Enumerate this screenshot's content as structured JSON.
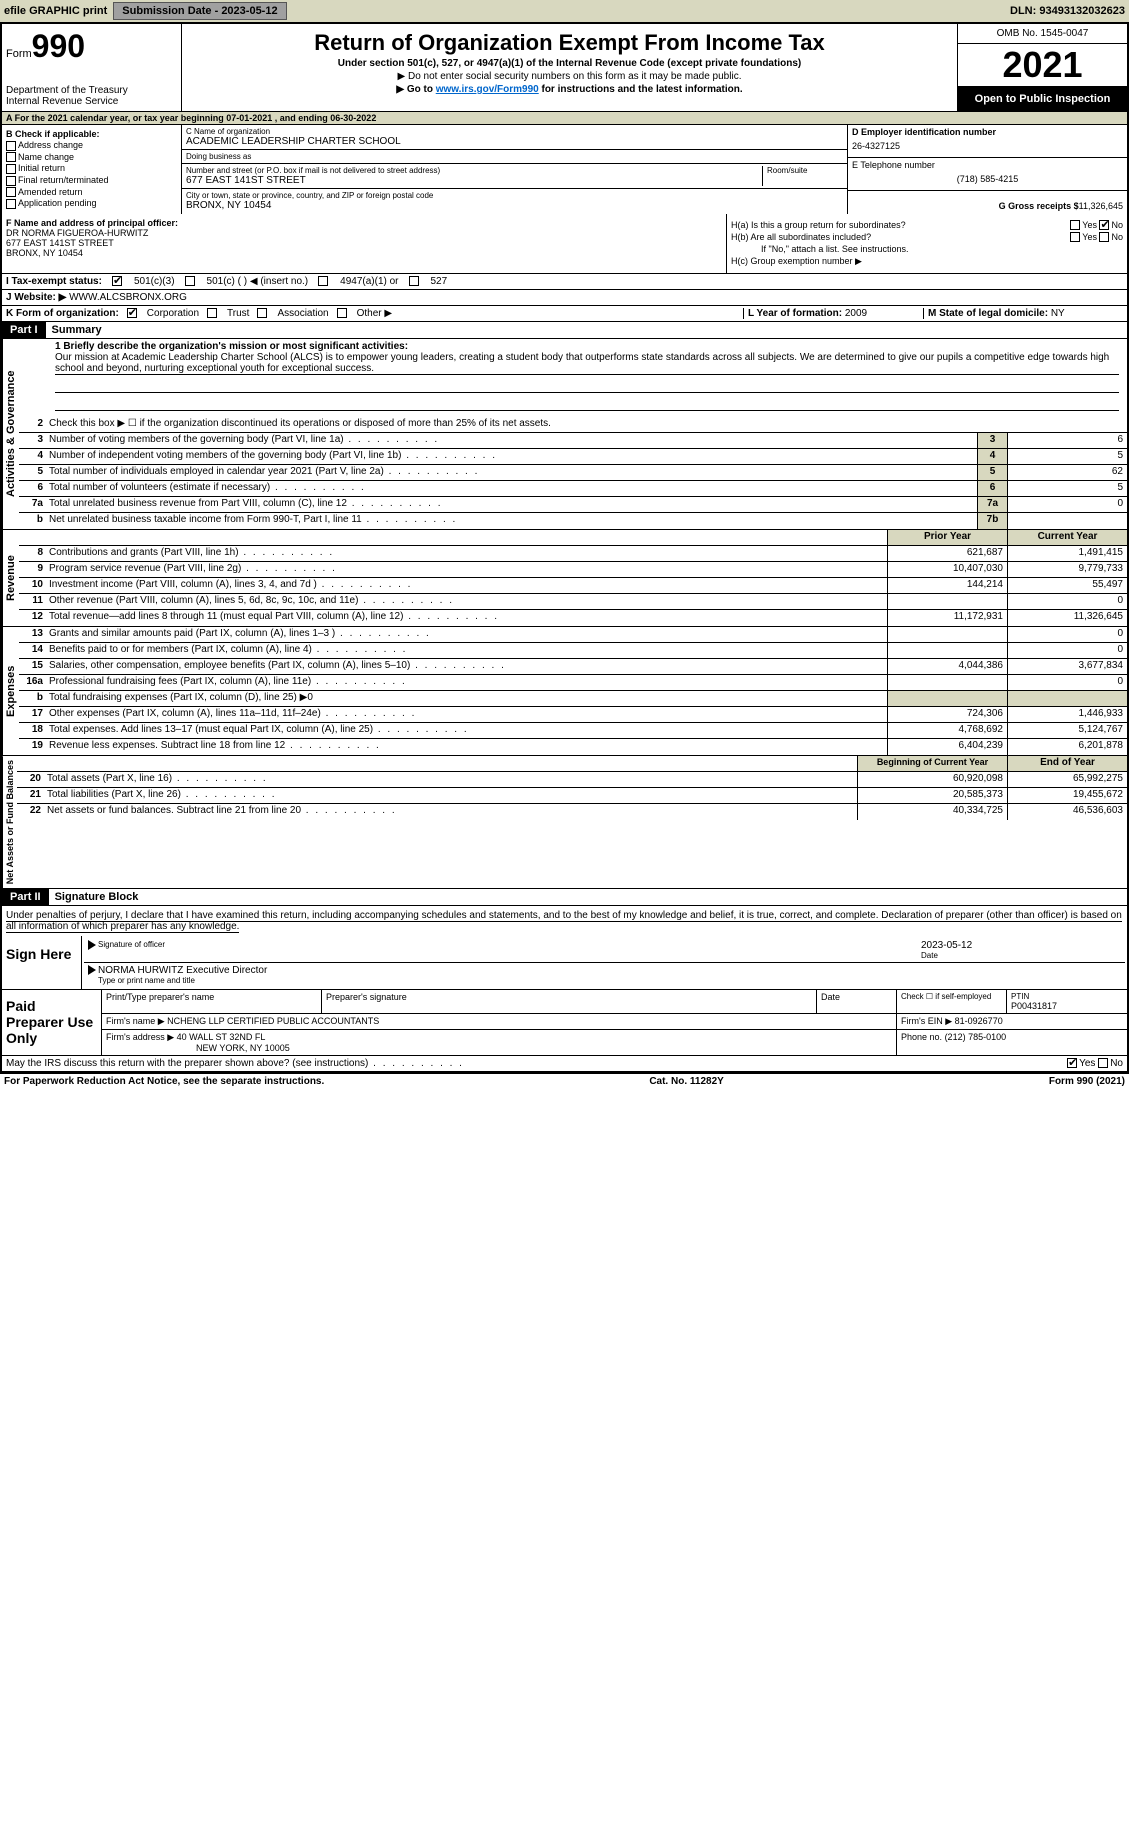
{
  "topbar": {
    "efile": "efile GRAPHIC print",
    "submission_btn": "Submission Date - 2023-05-12",
    "dln": "DLN: 93493132032623"
  },
  "header": {
    "form_prefix": "Form",
    "form_number": "990",
    "dept": "Department of the Treasury",
    "irs": "Internal Revenue Service",
    "title": "Return of Organization Exempt From Income Tax",
    "subtitle": "Under section 501(c), 527, or 4947(a)(1) of the Internal Revenue Code (except private foundations)",
    "note1": "▶ Do not enter social security numbers on this form as it may be made public.",
    "note2_pre": "▶ Go to ",
    "note2_link": "www.irs.gov/Form990",
    "note2_post": " for instructions and the latest information.",
    "omb": "OMB No. 1545-0047",
    "year": "2021",
    "open": "Open to Public Inspection"
  },
  "line_a": "A For the 2021 calendar year, or tax year beginning 07-01-2021    , and ending 06-30-2022",
  "col_b": {
    "title": "B Check if applicable:",
    "items": [
      "Address change",
      "Name change",
      "Initial return",
      "Final return/terminated",
      "Amended return",
      "Application pending"
    ]
  },
  "col_c": {
    "name_label": "C Name of organization",
    "name": "ACADEMIC LEADERSHIP CHARTER SCHOOL",
    "dba_label": "Doing business as",
    "dba": "",
    "street_label": "Number and street (or P.O. box if mail is not delivered to street address)",
    "room_label": "Room/suite",
    "street": "677 EAST 141ST STREET",
    "city_label": "City or town, state or province, country, and ZIP or foreign postal code",
    "city": "BRONX, NY  10454"
  },
  "col_d": {
    "ein_label": "D Employer identification number",
    "ein": "26-4327125",
    "tel_label": "E Telephone number",
    "tel": "(718) 585-4215",
    "gross_label": "G Gross receipts $",
    "gross": "11,326,645"
  },
  "section_f": {
    "label": "F Name and address of principal officer:",
    "name": "DR NORMA FIGUEROA-HURWITZ",
    "street": "677 EAST 141ST STREET",
    "city": "BRONX, NY  10454"
  },
  "section_h": {
    "ha": "H(a)  Is this a group return for subordinates?",
    "ha_yes": "Yes",
    "ha_no": "No",
    "hb": "H(b)  Are all subordinates included?",
    "hb_note": "If \"No,\" attach a list. See instructions.",
    "hc": "H(c)  Group exemption number ▶"
  },
  "tax_status": {
    "label": "I    Tax-exempt status:",
    "opts": [
      "501(c)(3)",
      "501(c) (   ) ◀ (insert no.)",
      "4947(a)(1) or",
      "527"
    ]
  },
  "website": {
    "label": "J    Website: ▶",
    "val": "WWW.ALCSBRONX.ORG"
  },
  "line_k": {
    "label": "K Form of organization:",
    "opts": [
      "Corporation",
      "Trust",
      "Association",
      "Other ▶"
    ]
  },
  "line_l": {
    "label": "L Year of formation:",
    "val": "2009"
  },
  "line_m": {
    "label": "M State of legal domicile:",
    "val": "NY"
  },
  "part1": {
    "header": "Part I",
    "title": "Summary"
  },
  "mission": {
    "label": "1  Briefly describe the organization's mission or most significant activities:",
    "text": "Our mission at Academic Leadership Charter School (ALCS) is to empower young leaders, creating a student body that outperforms state standards across all subjects. We are determined to give our pupils a competitive edge towards high school and beyond, nurturing exceptional youth for exceptional success."
  },
  "gov_label": "Activities & Governance",
  "rev_label": "Revenue",
  "exp_label": "Expenses",
  "net_label": "Net Assets or Fund Balances",
  "gov_rows": [
    {
      "n": "2",
      "d": "Check this box ▶ ☐ if the organization discontinued its operations or disposed of more than 25% of its net assets."
    },
    {
      "n": "3",
      "d": "Number of voting members of the governing body (Part VI, line 1a)",
      "box": "3",
      "v": "6"
    },
    {
      "n": "4",
      "d": "Number of independent voting members of the governing body (Part VI, line 1b)",
      "box": "4",
      "v": "5"
    },
    {
      "n": "5",
      "d": "Total number of individuals employed in calendar year 2021 (Part V, line 2a)",
      "box": "5",
      "v": "62"
    },
    {
      "n": "6",
      "d": "Total number of volunteers (estimate if necessary)",
      "box": "6",
      "v": "5"
    },
    {
      "n": "7a",
      "d": "Total unrelated business revenue from Part VIII, column (C), line 12",
      "box": "7a",
      "v": "0"
    },
    {
      "n": "b",
      "d": "Net unrelated business taxable income from Form 990-T, Part I, line 11",
      "box": "7b",
      "v": ""
    }
  ],
  "rev_head": {
    "prior": "Prior Year",
    "current": "Current Year"
  },
  "rev_rows": [
    {
      "n": "8",
      "d": "Contributions and grants (Part VIII, line 1h)",
      "p": "621,687",
      "c": "1,491,415"
    },
    {
      "n": "9",
      "d": "Program service revenue (Part VIII, line 2g)",
      "p": "10,407,030",
      "c": "9,779,733"
    },
    {
      "n": "10",
      "d": "Investment income (Part VIII, column (A), lines 3, 4, and 7d )",
      "p": "144,214",
      "c": "55,497"
    },
    {
      "n": "11",
      "d": "Other revenue (Part VIII, column (A), lines 5, 6d, 8c, 9c, 10c, and 11e)",
      "p": "",
      "c": "0"
    },
    {
      "n": "12",
      "d": "Total revenue—add lines 8 through 11 (must equal Part VIII, column (A), line 12)",
      "p": "11,172,931",
      "c": "11,326,645"
    }
  ],
  "exp_rows": [
    {
      "n": "13",
      "d": "Grants and similar amounts paid (Part IX, column (A), lines 1–3 )",
      "p": "",
      "c": "0"
    },
    {
      "n": "14",
      "d": "Benefits paid to or for members (Part IX, column (A), line 4)",
      "p": "",
      "c": "0"
    },
    {
      "n": "15",
      "d": "Salaries, other compensation, employee benefits (Part IX, column (A), lines 5–10)",
      "p": "4,044,386",
      "c": "3,677,834"
    },
    {
      "n": "16a",
      "d": "Professional fundraising fees (Part IX, column (A), line 11e)",
      "p": "",
      "c": "0"
    },
    {
      "n": "b",
      "d": "Total fundraising expenses (Part IX, column (D), line 25) ▶0",
      "p": "",
      "c": ""
    },
    {
      "n": "17",
      "d": "Other expenses (Part IX, column (A), lines 11a–11d, 11f–24e)",
      "p": "724,306",
      "c": "1,446,933"
    },
    {
      "n": "18",
      "d": "Total expenses. Add lines 13–17 (must equal Part IX, column (A), line 25)",
      "p": "4,768,692",
      "c": "5,124,767"
    },
    {
      "n": "19",
      "d": "Revenue less expenses. Subtract line 18 from line 12",
      "p": "6,404,239",
      "c": "6,201,878"
    }
  ],
  "net_head": {
    "prior": "Beginning of Current Year",
    "current": "End of Year"
  },
  "net_rows": [
    {
      "n": "20",
      "d": "Total assets (Part X, line 16)",
      "p": "60,920,098",
      "c": "65,992,275"
    },
    {
      "n": "21",
      "d": "Total liabilities (Part X, line 26)",
      "p": "20,585,373",
      "c": "19,455,672"
    },
    {
      "n": "22",
      "d": "Net assets or fund balances. Subtract line 21 from line 20",
      "p": "40,334,725",
      "c": "46,536,603"
    }
  ],
  "part2": {
    "header": "Part II",
    "title": "Signature Block"
  },
  "penalties": "Under penalties of perjury, I declare that I have examined this return, including accompanying schedules and statements, and to the best of my knowledge and belief, it is true, correct, and complete. Declaration of preparer (other than officer) is based on all information of which preparer has any knowledge.",
  "sign": {
    "label": "Sign Here",
    "date": "2023-05-12",
    "sig_label": "Signature of officer",
    "date_label": "Date",
    "name": "NORMA HURWITZ  Executive Director",
    "name_label": "Type or print name and title"
  },
  "preparer": {
    "label": "Paid Preparer Use Only",
    "h_name": "Print/Type preparer's name",
    "h_sig": "Preparer's signature",
    "h_date": "Date",
    "h_check": "Check ☐ if self-employed",
    "h_ptin": "PTIN",
    "ptin": "P00431817",
    "firm_label": "Firm's name    ▶",
    "firm": "NCHENG LLP CERTIFIED PUBLIC ACCOUNTANTS",
    "ein_label": "Firm's EIN ▶",
    "ein": "81-0926770",
    "addr_label": "Firm's address ▶",
    "addr1": "40 WALL ST 32ND FL",
    "addr2": "NEW YORK, NY  10005",
    "phone_label": "Phone no.",
    "phone": "(212) 785-0100"
  },
  "discuss": {
    "text": "May the IRS discuss this return with the preparer shown above? (see instructions)",
    "yes": "Yes",
    "no": "No"
  },
  "footer": {
    "left": "For Paperwork Reduction Act Notice, see the separate instructions.",
    "mid": "Cat. No. 11282Y",
    "right": "Form 990 (2021)"
  }
}
